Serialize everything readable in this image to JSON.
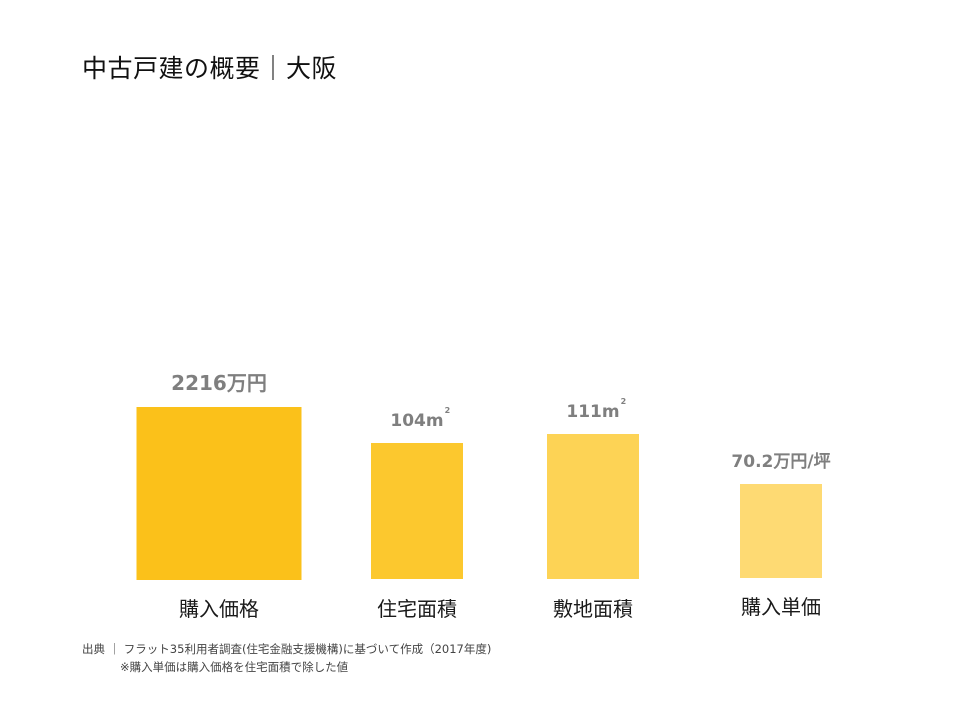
{
  "title": "中古戸建の概要｜大阪",
  "chart_data": {
    "type": "bar",
    "categories": [
      "購入価格",
      "住宅面積",
      "敷地面積",
      "購入単価"
    ],
    "series": [
      {
        "values": [
          2216,
          104,
          111,
          70.2
        ],
        "labels": [
          "2216万円",
          "104m",
          "111m",
          "70.2万円/坪"
        ],
        "label_superscripts": [
          "",
          "2",
          "2",
          ""
        ],
        "colors": [
          "#FBC11A",
          "#FCC82E",
          "#FDD355",
          "#FEDA73"
        ]
      }
    ]
  },
  "source": {
    "line1": "出典 ｜ フラット35利用者調査(住宅金融支援機構)に基づいて作成（2017年度)",
    "line2": "※購入単価は購入価格を住宅面積で除した値"
  }
}
